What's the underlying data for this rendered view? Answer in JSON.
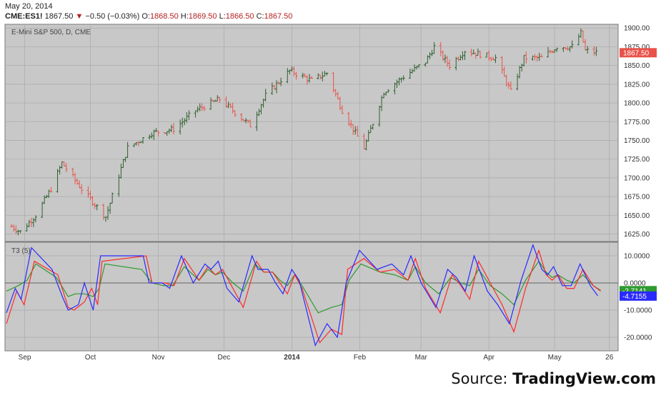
{
  "header": {
    "date": "May 20, 2014",
    "symbol": "CME:ES1!",
    "last": "1867.50",
    "change": "−0.50 (−0.03%)",
    "o_label": "O:",
    "o": "1868.50",
    "h_label": "H:",
    "h": "1869.50",
    "l_label": "L:",
    "l": "1866.50",
    "c_label": "C:",
    "c": "1867.50"
  },
  "source": {
    "prefix": "Source: ",
    "brand": "TradingView.com"
  },
  "colors": {
    "up": "#2f5f2f",
    "down": "#e8534a",
    "panel_bg": "#c8c8c8",
    "blue": "#2a2aff",
    "red": "#ff2a2a",
    "green": "#2f9a2f"
  },
  "chart_data": [
    {
      "type": "bar",
      "title": "E-Mini S&P 500, D, CME",
      "ylim": [
        1615,
        1905
      ],
      "y_ticks": [
        1625,
        1650,
        1675,
        1700,
        1725,
        1750,
        1775,
        1800,
        1825,
        1850,
        1875,
        1900
      ],
      "y_tick_labels": [
        "1625.00",
        "1650.00",
        "1675.00",
        "1700.00",
        "1725.00",
        "1750.00",
        "1775.00",
        "1800.00",
        "1825.00",
        "1850.00",
        "1875.00",
        "1900.00"
      ],
      "last_price_label": "1867.50",
      "last_price": 1867.5,
      "x_labels": [
        "Sep",
        "Oct",
        "Nov",
        "Dec",
        "2014",
        "Feb",
        "Mar",
        "Apr",
        "May",
        "26"
      ],
      "x_label_dates": [
        "2013-09-01",
        "2013-10-01",
        "2013-11-01",
        "2013-12-01",
        "2014-01-01",
        "2014-02-01",
        "2014-03-01",
        "2014-04-01",
        "2014-05-01",
        "2014-05-26"
      ],
      "x_range": [
        "2013-08-23",
        "2014-05-30"
      ],
      "key_closes": [
        [
          "2013-08-26",
          1635
        ],
        [
          "2013-08-30",
          1628
        ],
        [
          "2013-09-06",
          1650
        ],
        [
          "2013-09-13",
          1685
        ],
        [
          "2013-09-18",
          1720
        ],
        [
          "2013-09-27",
          1685
        ],
        [
          "2013-10-08",
          1648
        ],
        [
          "2013-10-18",
          1740
        ],
        [
          "2013-10-29",
          1760
        ],
        [
          "2013-11-08",
          1765
        ],
        [
          "2013-11-18",
          1790
        ],
        [
          "2013-11-29",
          1805
        ],
        [
          "2013-12-05",
          1790
        ],
        [
          "2013-12-13",
          1770
        ],
        [
          "2013-12-20",
          1810
        ],
        [
          "2013-12-31",
          1843
        ],
        [
          "2014-01-10",
          1830
        ],
        [
          "2014-01-17",
          1840
        ],
        [
          "2014-01-24",
          1790
        ],
        [
          "2014-02-03",
          1740
        ],
        [
          "2014-02-12",
          1815
        ],
        [
          "2014-02-21",
          1835
        ],
        [
          "2014-03-03",
          1855
        ],
        [
          "2014-03-07",
          1875
        ],
        [
          "2014-03-14",
          1850
        ],
        [
          "2014-03-21",
          1870
        ],
        [
          "2014-04-04",
          1860
        ],
        [
          "2014-04-11",
          1815
        ],
        [
          "2014-04-17",
          1860
        ],
        [
          "2014-04-25",
          1860
        ],
        [
          "2014-05-02",
          1875
        ],
        [
          "2014-05-09",
          1875
        ],
        [
          "2014-05-13",
          1893
        ],
        [
          "2014-05-15",
          1870
        ],
        [
          "2014-05-20",
          1867.5
        ]
      ]
    },
    {
      "type": "line",
      "title": "T3 (5)",
      "ylim": [
        -25,
        15
      ],
      "y_ticks": [
        -20,
        -10,
        0,
        10
      ],
      "y_tick_labels": [
        "-20.0000",
        "-10.0000",
        "0.0000",
        "10.0000"
      ],
      "series": [
        {
          "name": "",
          "color": "#2a2aff",
          "last_label": "-4.7155",
          "points": [
            [
              -11,
              0
            ],
            [
              -2,
              6
            ],
            [
              -6,
              10
            ],
            [
              13,
              17
            ],
            [
              5,
              31
            ],
            [
              -5,
              38
            ],
            [
              -10,
              42
            ],
            [
              -8,
              49
            ],
            [
              0,
              53
            ],
            [
              -10,
              59
            ],
            [
              10,
              64
            ],
            [
              10,
              93
            ],
            [
              0,
              97
            ],
            [
              0,
              106
            ],
            [
              -2,
              111
            ],
            [
              10,
              119
            ],
            [
              0,
              127
            ],
            [
              7,
              135
            ],
            [
              5,
              139
            ],
            [
              8,
              144
            ],
            [
              -2,
              150
            ],
            [
              -7,
              158
            ],
            [
              10,
              167
            ],
            [
              5,
              171
            ],
            [
              5,
              178
            ],
            [
              0,
              183
            ],
            [
              -4,
              188
            ],
            [
              5,
              194
            ],
            [
              1,
              199
            ],
            [
              -23,
              210
            ],
            [
              -15,
              218
            ],
            [
              -20,
              225
            ],
            [
              0,
              231
            ],
            [
              12,
              240
            ],
            [
              5,
              252
            ],
            [
              7,
              262
            ],
            [
              3,
              270
            ],
            [
              10,
              275
            ],
            [
              0,
              282
            ],
            [
              -9,
              292
            ],
            [
              5,
              300
            ],
            [
              2,
              306
            ],
            [
              -3,
              312
            ],
            [
              10,
              318
            ],
            [
              -3,
              327
            ],
            [
              -8,
              334
            ],
            [
              -15,
              342
            ],
            [
              1,
              350
            ],
            [
              14,
              358
            ],
            [
              5,
              364
            ],
            [
              3,
              368
            ],
            [
              6,
              372
            ],
            [
              -1,
              378
            ],
            [
              -1,
              384
            ],
            [
              7,
              390
            ],
            [
              -1,
              397
            ],
            [
              -4.7,
              402
            ]
          ]
        },
        {
          "name": "",
          "color": "#ff2a2a",
          "last_label": "",
          "points": [
            [
              -15,
              0
            ],
            [
              -3,
              7
            ],
            [
              -8,
              12
            ],
            [
              8,
              19
            ],
            [
              3,
              35
            ],
            [
              -9,
              42
            ],
            [
              -10,
              46
            ],
            [
              -7,
              53
            ],
            [
              -2,
              58
            ],
            [
              -8,
              62
            ],
            [
              8,
              65
            ],
            [
              10,
              95
            ],
            [
              0,
              99
            ],
            [
              0,
              108
            ],
            [
              -1,
              114
            ],
            [
              9,
              121
            ],
            [
              1,
              131
            ],
            [
              6,
              137
            ],
            [
              3,
              142
            ],
            [
              5,
              147
            ],
            [
              -1,
              153
            ],
            [
              -9,
              161
            ],
            [
              8,
              170
            ],
            [
              4,
              175
            ],
            [
              4,
              181
            ],
            [
              0,
              186
            ],
            [
              -4,
              191
            ],
            [
              3,
              196
            ],
            [
              -2,
              201
            ],
            [
              -22,
              213
            ],
            [
              -17,
              221
            ],
            [
              -19,
              228
            ],
            [
              5,
              232
            ],
            [
              9,
              243
            ],
            [
              4,
              254
            ],
            [
              5,
              264
            ],
            [
              1,
              273
            ],
            [
              9,
              278
            ],
            [
              -2,
              285
            ],
            [
              -11,
              295
            ],
            [
              3,
              303
            ],
            [
              -1,
              309
            ],
            [
              -6,
              315
            ],
            [
              8,
              321
            ],
            [
              0,
              329
            ],
            [
              -8,
              337
            ],
            [
              -18,
              345
            ],
            [
              -2,
              353
            ],
            [
              12,
              362
            ],
            [
              3,
              367
            ],
            [
              1,
              371
            ],
            [
              3,
              375
            ],
            [
              -2,
              381
            ],
            [
              -2,
              386
            ],
            [
              5,
              392
            ],
            [
              -1,
              399
            ],
            [
              -3,
              404
            ]
          ]
        },
        {
          "name": "",
          "color": "#2f9a2f",
          "last_label": "-2.7141",
          "points": [
            [
              -3,
              0
            ],
            [
              -1,
              8
            ],
            [
              1,
              14
            ],
            [
              7,
              20
            ],
            [
              2,
              34
            ],
            [
              -5,
              42
            ],
            [
              -4,
              47
            ],
            [
              -4,
              53
            ],
            [
              -5,
              59
            ],
            [
              -2,
              63
            ],
            [
              7,
              67
            ],
            [
              5,
              92
            ],
            [
              0,
              99
            ],
            [
              -1,
              107
            ],
            [
              -1,
              113
            ],
            [
              6,
              121
            ],
            [
              1,
              131
            ],
            [
              5,
              137
            ],
            [
              3,
              142
            ],
            [
              4,
              147
            ],
            [
              0,
              154
            ],
            [
              -3,
              161
            ],
            [
              7,
              169
            ],
            [
              4,
              175
            ],
            [
              4,
              181
            ],
            [
              1,
              186
            ],
            [
              -1,
              191
            ],
            [
              3,
              196
            ],
            [
              -1,
              201
            ],
            [
              -11,
              212
            ],
            [
              -9,
              221
            ],
            [
              -8,
              228
            ],
            [
              1,
              233
            ],
            [
              7,
              241
            ],
            [
              4,
              254
            ],
            [
              3,
              264
            ],
            [
              1,
              273
            ],
            [
              6,
              278
            ],
            [
              0,
              285
            ],
            [
              -4,
              294
            ],
            [
              2,
              302
            ],
            [
              0,
              309
            ],
            [
              -1,
              315
            ],
            [
              5,
              321
            ],
            [
              -1,
              329
            ],
            [
              -4,
              337
            ],
            [
              -8,
              345
            ],
            [
              1,
              353
            ],
            [
              8,
              362
            ],
            [
              4,
              367
            ],
            [
              2,
              371
            ],
            [
              3,
              375
            ],
            [
              1,
              381
            ],
            [
              0,
              386
            ],
            [
              3,
              392
            ],
            [
              -1,
              399
            ],
            [
              -2.7,
              404
            ]
          ]
        }
      ]
    }
  ]
}
